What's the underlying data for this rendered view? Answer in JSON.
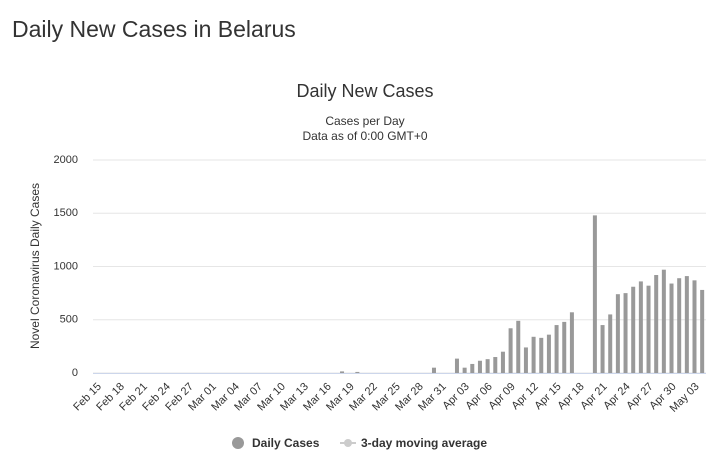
{
  "page_title": "Daily New Cases in Belarus",
  "chart_data": {
    "type": "bar",
    "title": "Daily New Cases",
    "subtitle": [
      "Cases per Day",
      "Data as of 0:00 GMT+0"
    ],
    "ylabel": "Novel Coronavirus Daily Cases",
    "categories": [
      "Feb 15",
      null,
      null,
      "Feb 18",
      null,
      null,
      "Feb 21",
      null,
      null,
      "Feb 24",
      null,
      null,
      "Feb 27",
      null,
      null,
      "Mar 01",
      null,
      null,
      "Mar 04",
      null,
      null,
      "Mar 07",
      null,
      null,
      "Mar 10",
      null,
      null,
      "Mar 13",
      null,
      null,
      "Mar 16",
      null,
      null,
      "Mar 19",
      null,
      null,
      "Mar 22",
      null,
      null,
      "Mar 25",
      null,
      null,
      "Mar 28",
      null,
      null,
      "Mar 31",
      null,
      null,
      "Apr 03",
      null,
      null,
      "Apr 06",
      null,
      null,
      "Apr 09",
      null,
      null,
      "Apr 12",
      null,
      null,
      "Apr 15",
      null,
      null,
      "Apr 18",
      null,
      null,
      "Apr 21",
      null,
      null,
      "Apr 24",
      null,
      null,
      "Apr 27",
      null,
      null,
      "Apr 30",
      null,
      null,
      "May 03",
      null
    ],
    "series": [
      {
        "name": "Daily Cases",
        "color": "#999999",
        "values": [
          0,
          0,
          0,
          0,
          0,
          0,
          0,
          0,
          0,
          0,
          0,
          0,
          0,
          0,
          0,
          0,
          0,
          0,
          0,
          0,
          0,
          0,
          0,
          0,
          0,
          0,
          0,
          0,
          0,
          0,
          0,
          0,
          15,
          0,
          10,
          0,
          0,
          0,
          0,
          0,
          0,
          0,
          0,
          0,
          50,
          0,
          0,
          135,
          50,
          85,
          115,
          130,
          150,
          200,
          420,
          490,
          240,
          340,
          330,
          360,
          450,
          480,
          570,
          0,
          0,
          1480,
          450,
          550,
          740,
          750,
          810,
          860,
          820,
          920,
          970,
          840,
          890,
          910,
          870,
          780
        ]
      },
      {
        "name": "3-day moving average",
        "color": "#cccccc",
        "visible": false
      }
    ],
    "ylim": [
      0,
      2000
    ],
    "yticks": [
      0,
      500,
      1000,
      1500,
      2000
    ],
    "grid": true
  }
}
